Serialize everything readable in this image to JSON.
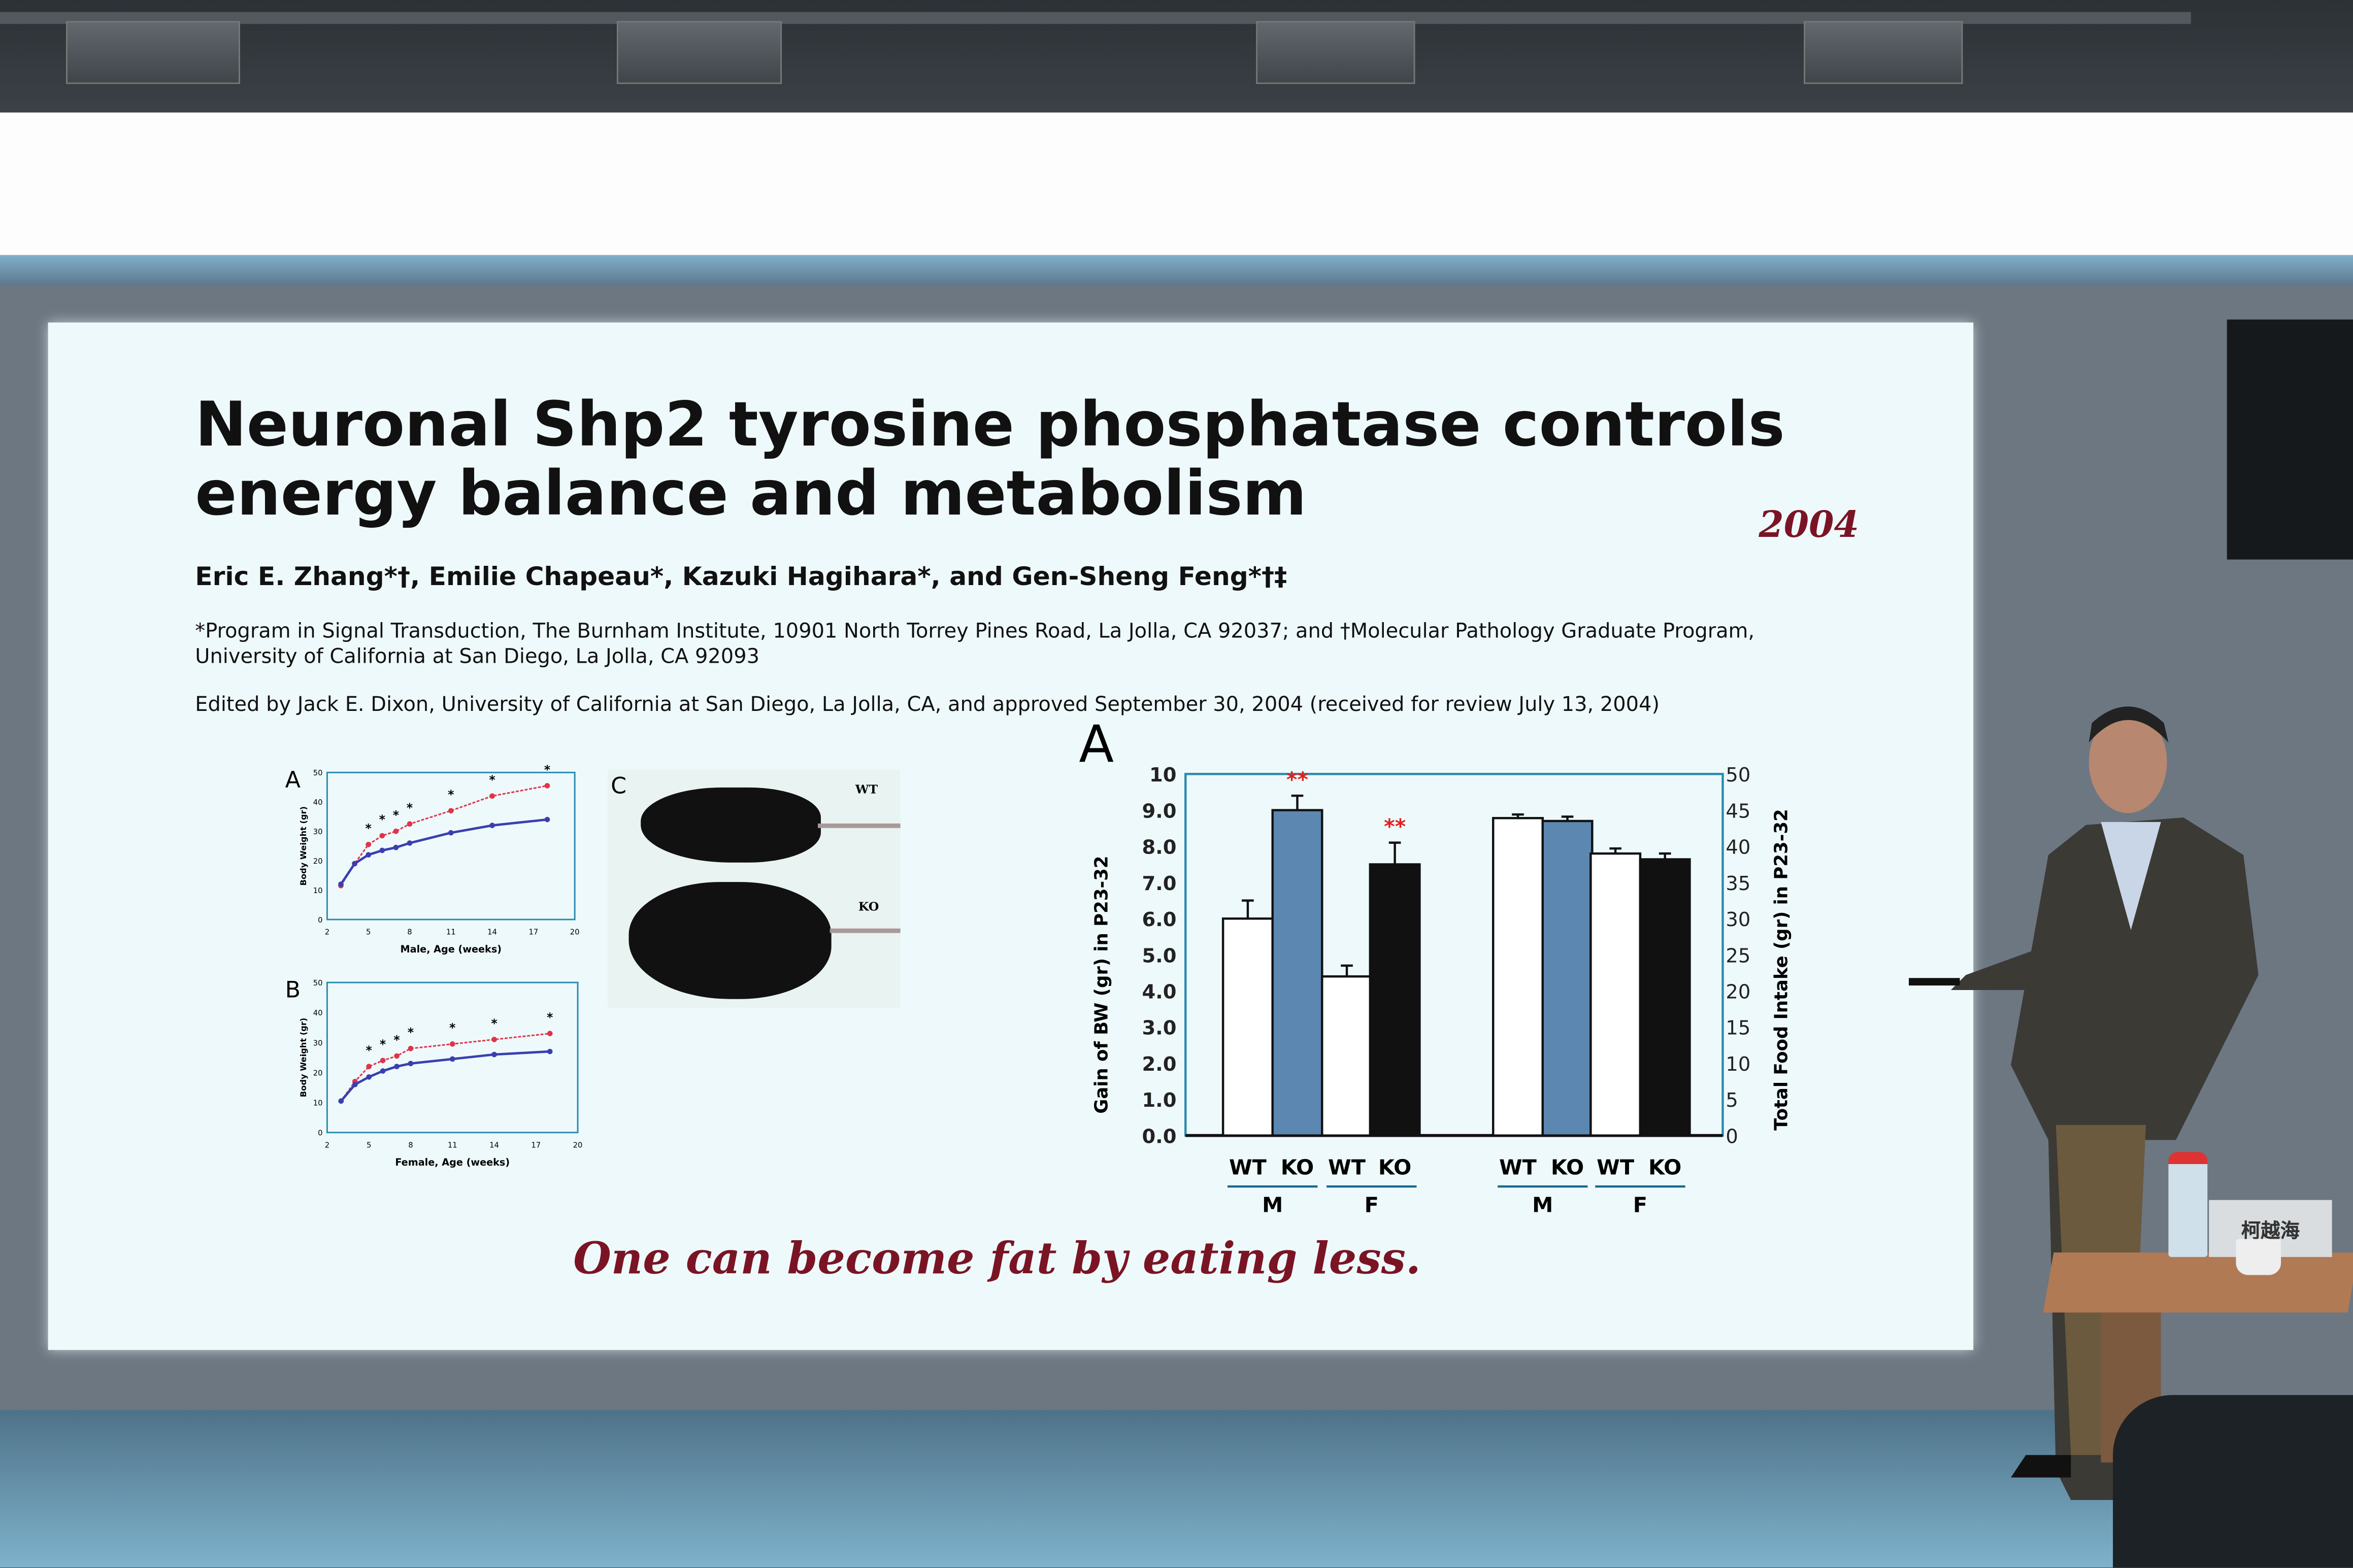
{
  "slide": {
    "title": "Neuronal Shp2 tyrosine phosphatase controls energy balance and metabolism",
    "year": "2004",
    "authors": "Eric E. Zhang*†, Emilie Chapeau*, Kazuki Hagihara*, and Gen-Sheng Feng*†‡",
    "affiliation_1": "*Program in Signal Transduction, The Burnham Institute, 10901 North Torrey Pines Road, La Jolla, CA 92037; and †Molecular Pathology Graduate Program,",
    "affiliation_2": "University of California at San Diego, La Jolla, CA 92093",
    "edited": "Edited by Jack E. Dixon, University of California at San Diego, La Jolla, CA, and approved September 30, 2004 (received for review July 13, 2004)",
    "quote": "One can become fat by eating less.",
    "photo": {
      "label": "C",
      "wt_label": "WT",
      "ko_label": "KO"
    }
  },
  "name_plate": "柯越海",
  "colors": {
    "slide_bg": "#eef9fb",
    "accent_red": "#7a1424",
    "ko_gray_blue": "#5b87b0",
    "ko_line": "#e0334a",
    "wt_line": "#3a3fb0"
  },
  "chart_data": [
    {
      "type": "line",
      "panel": "A",
      "xlabel": "Male, Age (weeks)",
      "ylabel": "Body Weight (gr)",
      "xlim": [
        2,
        20
      ],
      "ylim": [
        0,
        50
      ],
      "xticks": [
        2,
        5,
        8,
        11,
        14,
        17,
        20
      ],
      "yticks": [
        0,
        10,
        20,
        30,
        40,
        50
      ],
      "x": [
        3,
        4,
        5,
        6,
        7,
        8,
        11,
        14,
        18
      ],
      "series": [
        {
          "values": [
            11.5,
            19,
            25.5,
            28.5,
            30,
            32.5,
            37,
            42,
            45.5
          ],
          "color": "#e0334a"
        },
        {
          "values": [
            12,
            19,
            22,
            23.5,
            24.5,
            26,
            29.5,
            32,
            34
          ],
          "color": "#3a3fb0"
        }
      ],
      "significance_marks_at_x": [
        5,
        6,
        7,
        8,
        11,
        14,
        18
      ]
    },
    {
      "type": "line",
      "panel": "B",
      "xlabel": "Female, Age (weeks)",
      "ylabel": "Body Weight (gr)",
      "xlim": [
        2,
        20
      ],
      "ylim": [
        0,
        50
      ],
      "xticks": [
        2,
        5,
        8,
        11,
        14,
        17,
        20
      ],
      "yticks": [
        0,
        10,
        20,
        30,
        40,
        50
      ],
      "x": [
        3,
        4,
        5,
        6,
        7,
        8,
        11,
        14,
        18
      ],
      "series": [
        {
          "values": [
            10.5,
            17,
            22,
            24,
            25.5,
            28,
            29.5,
            31,
            33
          ],
          "color": "#e0334a"
        },
        {
          "values": [
            10.5,
            16,
            18.5,
            20.5,
            22,
            23,
            24.5,
            26,
            27
          ],
          "color": "#3a3fb0"
        }
      ],
      "significance_marks_at_x": [
        5,
        6,
        7,
        8,
        11,
        14,
        18
      ]
    },
    {
      "type": "bar",
      "panel": "A",
      "ylabel": "Gain of BW (gr) in P23-32",
      "y2label": "Total Food Intake (gr) in P23-32",
      "ylim": [
        0,
        10
      ],
      "y2lim": [
        0,
        50
      ],
      "yticks": [
        "0.0",
        "1.0",
        "2.0",
        "3.0",
        "4.0",
        "5.0",
        "6.0",
        "7.0",
        "8.0",
        "9.0",
        "10"
      ],
      "y2ticks": [
        "0",
        "5",
        "10",
        "15",
        "20",
        "25",
        "30",
        "35",
        "40",
        "45",
        "50"
      ],
      "categories": [
        "WT",
        "KO",
        "WT",
        "KO",
        "WT",
        "KO",
        "WT",
        "KO"
      ],
      "groups": [
        "M",
        "F",
        "M",
        "F"
      ],
      "bw_gain": {
        "values": [
          6.0,
          9.0,
          4.4,
          7.5
        ],
        "errors": [
          0.5,
          0.4,
          0.3,
          0.6
        ],
        "significance": [
          "",
          "**",
          "",
          "**"
        ]
      },
      "food_intake": {
        "values": [
          43.9,
          43.5,
          39.0,
          38.2
        ],
        "errors": [
          0.5,
          0.6,
          0.7,
          0.8
        ]
      },
      "bar_colors": [
        "#ffffff",
        "#5b87b0",
        "#ffffff",
        "#111111",
        "#ffffff",
        "#5b87b0",
        "#ffffff",
        "#111111"
      ]
    }
  ]
}
